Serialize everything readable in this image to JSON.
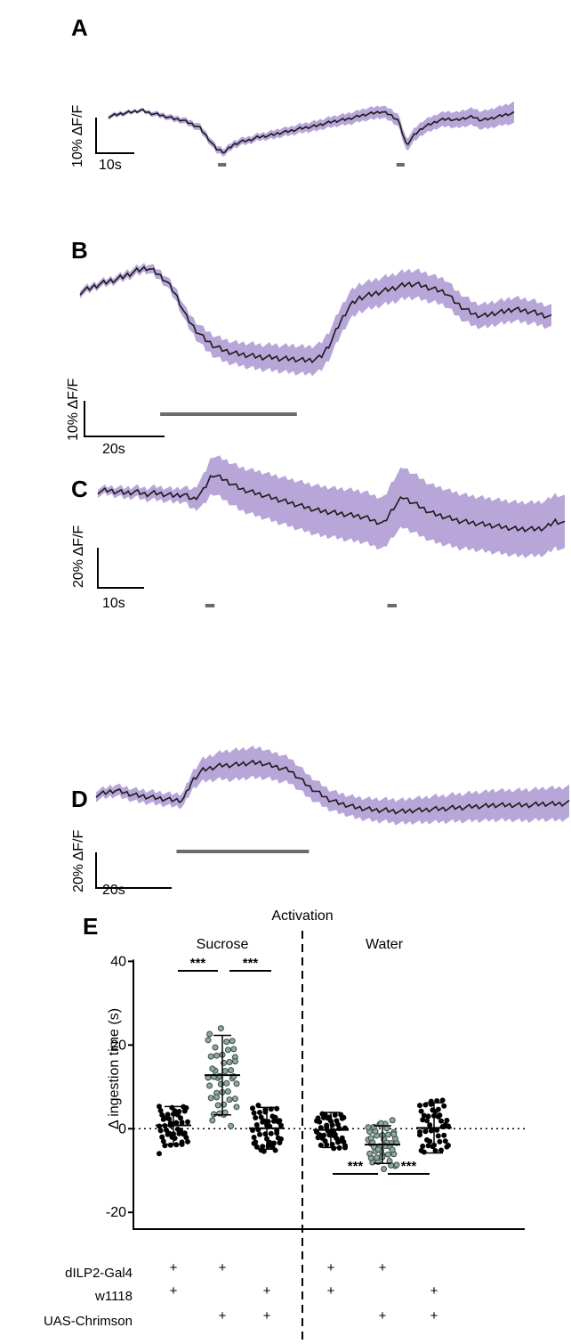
{
  "colors": {
    "band": "#b8a6d9",
    "trace": "#1a1a1a",
    "stim": "#6b6b6b",
    "dot_black": "#000000",
    "dot_teal": "#8fa99e",
    "dot_teal_edge": "#3a4a44"
  },
  "chart_data": [
    {
      "type": "line",
      "panel": "A",
      "scale_y_label": "10% ΔF/F",
      "scale_x_label": "10s",
      "series": [
        {
          "values": [
            0.55,
            0.58,
            0.6,
            0.62,
            0.64,
            0.6,
            0.58,
            0.55,
            0.52,
            0.5,
            0.45,
            0.4,
            0.25,
            0.1,
            0.05,
            0.15,
            0.2,
            0.22,
            0.26,
            0.28,
            0.3,
            0.33,
            0.35,
            0.38,
            0.4,
            0.42,
            0.45,
            0.48,
            0.5,
            0.52,
            0.55,
            0.58,
            0.6,
            0.62,
            0.58,
            0.5,
            0.15,
            0.3,
            0.4,
            0.45,
            0.5,
            0.52,
            0.5,
            0.53,
            0.55,
            0.5,
            0.52,
            0.55,
            0.58,
            0.6
          ]
        }
      ],
      "band_width": [
        0.06,
        0.06,
        0.06,
        0.05,
        0.05,
        0.06,
        0.07,
        0.07,
        0.08,
        0.08,
        0.09,
        0.1,
        0.1,
        0.1,
        0.1,
        0.1,
        0.1,
        0.1,
        0.1,
        0.1,
        0.12,
        0.12,
        0.12,
        0.13,
        0.13,
        0.14,
        0.14,
        0.15,
        0.15,
        0.16,
        0.16,
        0.17,
        0.17,
        0.17,
        0.17,
        0.17,
        0.17,
        0.18,
        0.19,
        0.2,
        0.2,
        0.21,
        0.22,
        0.23,
        0.24,
        0.25,
        0.26,
        0.27,
        0.28,
        0.3
      ],
      "stimuli": [
        [
          0.27,
          0.29
        ],
        [
          0.71,
          0.73
        ]
      ]
    },
    {
      "type": "line",
      "panel": "B",
      "scale_y_label": "10% ΔF/F",
      "scale_x_label": "20s",
      "series": [
        {
          "values": [
            0.72,
            0.75,
            0.78,
            0.8,
            0.82,
            0.85,
            0.88,
            0.9,
            0.86,
            0.8,
            0.7,
            0.55,
            0.45,
            0.38,
            0.33,
            0.3,
            0.28,
            0.27,
            0.26,
            0.25,
            0.25,
            0.24,
            0.24,
            0.23,
            0.23,
            0.25,
            0.35,
            0.5,
            0.62,
            0.68,
            0.7,
            0.72,
            0.74,
            0.76,
            0.78,
            0.78,
            0.76,
            0.74,
            0.72,
            0.65,
            0.6,
            0.56,
            0.55,
            0.57,
            0.58,
            0.6,
            0.59,
            0.58,
            0.56,
            0.54
          ]
        }
      ],
      "band_width": [
        0.05,
        0.05,
        0.05,
        0.05,
        0.05,
        0.06,
        0.06,
        0.06,
        0.07,
        0.07,
        0.09,
        0.1,
        0.12,
        0.14,
        0.15,
        0.16,
        0.16,
        0.17,
        0.18,
        0.18,
        0.19,
        0.19,
        0.2,
        0.2,
        0.2,
        0.2,
        0.2,
        0.2,
        0.2,
        0.2,
        0.2,
        0.2,
        0.2,
        0.2,
        0.2,
        0.2,
        0.2,
        0.19,
        0.19,
        0.18,
        0.18,
        0.17,
        0.17,
        0.17,
        0.17,
        0.17,
        0.17,
        0.17,
        0.16,
        0.16
      ],
      "stimuli": [
        [
          0.17,
          0.46
        ]
      ]
    },
    {
      "type": "line",
      "panel": "C",
      "scale_y_label": "20% ΔF/F",
      "scale_x_label": "10s",
      "series": [
        {
          "values": [
            0.72,
            0.73,
            0.72,
            0.71,
            0.72,
            0.7,
            0.71,
            0.7,
            0.69,
            0.7,
            0.66,
            0.72,
            0.85,
            0.82,
            0.78,
            0.74,
            0.72,
            0.7,
            0.68,
            0.66,
            0.64,
            0.62,
            0.6,
            0.58,
            0.57,
            0.56,
            0.55,
            0.54,
            0.53,
            0.5,
            0.48,
            0.6,
            0.68,
            0.64,
            0.6,
            0.56,
            0.54,
            0.52,
            0.5,
            0.49,
            0.48,
            0.47,
            0.46,
            0.45,
            0.44,
            0.44,
            0.44,
            0.45,
            0.5,
            0.48
          ]
        }
      ],
      "band_width": [
        0.06,
        0.06,
        0.07,
        0.08,
        0.08,
        0.09,
        0.1,
        0.1,
        0.1,
        0.11,
        0.15,
        0.22,
        0.28,
        0.3,
        0.31,
        0.32,
        0.33,
        0.34,
        0.34,
        0.35,
        0.35,
        0.36,
        0.36,
        0.37,
        0.37,
        0.37,
        0.38,
        0.38,
        0.38,
        0.38,
        0.38,
        0.42,
        0.45,
        0.44,
        0.43,
        0.42,
        0.42,
        0.41,
        0.41,
        0.4,
        0.4,
        0.4,
        0.4,
        0.4,
        0.4,
        0.4,
        0.4,
        0.4,
        0.4,
        0.4
      ],
      "stimuli": [
        [
          0.23,
          0.25
        ],
        [
          0.62,
          0.64
        ]
      ]
    },
    {
      "type": "line",
      "panel": "D",
      "scale_y_label": "20% ΔF/F",
      "scale_x_label": "20s",
      "series": [
        {
          "values": [
            0.48,
            0.5,
            0.52,
            0.5,
            0.48,
            0.47,
            0.46,
            0.45,
            0.44,
            0.44,
            0.6,
            0.68,
            0.7,
            0.72,
            0.72,
            0.73,
            0.74,
            0.74,
            0.72,
            0.7,
            0.68,
            0.62,
            0.55,
            0.5,
            0.45,
            0.42,
            0.4,
            0.38,
            0.37,
            0.36,
            0.36,
            0.35,
            0.35,
            0.36,
            0.36,
            0.37,
            0.37,
            0.38,
            0.38,
            0.39,
            0.39,
            0.4,
            0.4,
            0.4,
            0.4,
            0.4,
            0.41,
            0.41,
            0.41,
            0.42
          ]
        }
      ],
      "band_width": [
        0.08,
        0.08,
        0.09,
        0.09,
        0.1,
        0.1,
        0.1,
        0.1,
        0.1,
        0.11,
        0.14,
        0.18,
        0.2,
        0.22,
        0.24,
        0.24,
        0.24,
        0.24,
        0.22,
        0.22,
        0.2,
        0.19,
        0.18,
        0.17,
        0.16,
        0.16,
        0.16,
        0.17,
        0.17,
        0.18,
        0.18,
        0.19,
        0.19,
        0.2,
        0.2,
        0.21,
        0.21,
        0.22,
        0.22,
        0.23,
        0.23,
        0.24,
        0.24,
        0.24,
        0.25,
        0.25,
        0.25,
        0.26,
        0.26,
        0.26
      ],
      "stimuli": [
        [
          0.17,
          0.45
        ]
      ]
    },
    {
      "type": "scatter",
      "panel": "E",
      "title": "Activation",
      "ylabel": "Δ ingestion time (s)",
      "ylim": [
        -24,
        42
      ],
      "yticks": [
        "40",
        "20",
        "0",
        "-20"
      ],
      "group_labels": [
        "Sucrose",
        "Water"
      ],
      "significance": "***",
      "genotype_rows": [
        {
          "label": "dILP2-Gal4",
          "marks": [
            "+",
            "+",
            "",
            "+",
            "+",
            ""
          ]
        },
        {
          "label": "w1118",
          "marks": [
            "+",
            "",
            "+",
            "+",
            "",
            "+"
          ]
        },
        {
          "label": "UAS-Chrimson",
          "marks": [
            "",
            "+",
            "+",
            "",
            "+",
            "+"
          ]
        }
      ],
      "groups": [
        {
          "mean": 0.8,
          "sd": 4.5,
          "color": "black",
          "n": 45,
          "spread": 4.5
        },
        {
          "mean": 12.8,
          "sd": 9.5,
          "color": "teal",
          "n": 45,
          "spread": 8.5
        },
        {
          "mean": 0.1,
          "sd": 5.0,
          "color": "black",
          "n": 45,
          "spread": 5.0
        },
        {
          "mean": -0.3,
          "sd": 4.2,
          "color": "black",
          "n": 45,
          "spread": 4.0
        },
        {
          "mean": -3.8,
          "sd": 4.5,
          "color": "teal",
          "n": 45,
          "spread": 4.5
        },
        {
          "mean": 0.2,
          "sd": 6.0,
          "color": "black",
          "n": 45,
          "spread": 6.0
        }
      ]
    }
  ]
}
